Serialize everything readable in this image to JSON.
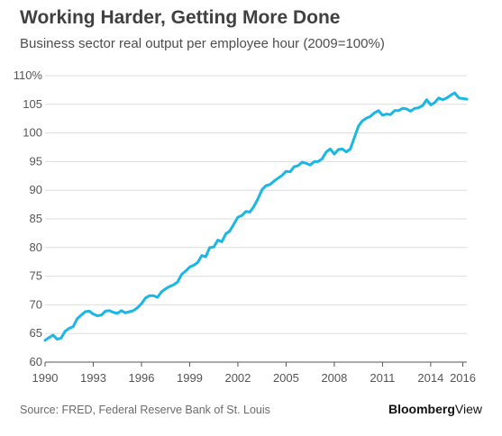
{
  "header": {
    "title": "Working Harder, Getting More Done",
    "subtitle": "Business sector real output per employee hour (2009=100%)"
  },
  "footer": {
    "source": "Source: FRED, Federal Reserve Bank of St. Louis",
    "brand_bold": "Bloomberg",
    "brand_light": "View"
  },
  "colors": {
    "line": "#1ab7e6",
    "grid": "#dddddd",
    "axis": "#555555"
  },
  "chart_data": {
    "type": "line",
    "title": "Working Harder, Getting More Done",
    "subtitle": "Business sector real output per employee hour (2009=100%)",
    "xlabel": "",
    "ylabel": "",
    "xlim": [
      1990,
      2016.25
    ],
    "ylim": [
      60,
      110
    ],
    "grid": true,
    "x_ticks": [
      1990,
      1993,
      1996,
      1999,
      2002,
      2005,
      2008,
      2011,
      2014,
      2016
    ],
    "x_tick_labels": [
      "1990",
      "1993",
      "1996",
      "1999",
      "2002",
      "2005",
      "2008",
      "2011",
      "2014",
      "2016"
    ],
    "y_ticks": [
      60,
      65,
      70,
      75,
      80,
      85,
      90,
      95,
      100,
      105,
      110
    ],
    "y_tick_labels": [
      "60",
      "65",
      "70",
      "75",
      "80",
      "85",
      "90",
      "95",
      "100",
      "105",
      "110%"
    ],
    "series": [
      {
        "x": [
          1990.0,
          1990.25,
          1990.5,
          1990.75,
          1991.0,
          1991.25,
          1991.5,
          1991.75,
          1992.0,
          1992.25,
          1992.5,
          1992.75,
          1993.0,
          1993.25,
          1993.5,
          1993.75,
          1994.0,
          1994.25,
          1994.5,
          1994.75,
          1995.0,
          1995.25,
          1995.5,
          1995.75,
          1996.0,
          1996.25,
          1996.5,
          1996.75,
          1997.0,
          1997.25,
          1997.5,
          1997.75,
          1998.0,
          1998.25,
          1998.5,
          1998.75,
          1999.0,
          1999.25,
          1999.5,
          1999.75,
          2000.0,
          2000.25,
          2000.5,
          2000.75,
          2001.0,
          2001.25,
          2001.5,
          2001.75,
          2002.0,
          2002.25,
          2002.5,
          2002.75,
          2003.0,
          2003.25,
          2003.5,
          2003.75,
          2004.0,
          2004.25,
          2004.5,
          2004.75,
          2005.0,
          2005.25,
          2005.5,
          2005.75,
          2006.0,
          2006.25,
          2006.5,
          2006.75,
          2007.0,
          2007.25,
          2007.5,
          2007.75,
          2008.0,
          2008.25,
          2008.5,
          2008.75,
          2009.0,
          2009.25,
          2009.5,
          2009.75,
          2010.0,
          2010.25,
          2010.5,
          2010.75,
          2011.0,
          2011.25,
          2011.5,
          2011.75,
          2012.0,
          2012.25,
          2012.5,
          2012.75,
          2013.0,
          2013.25,
          2013.5,
          2013.75,
          2014.0,
          2014.25,
          2014.5,
          2014.75,
          2015.0,
          2015.25,
          2015.5,
          2015.75,
          2016.0,
          2016.25
        ],
        "values": [
          63.8,
          64.3,
          64.7,
          64.0,
          64.2,
          65.4,
          65.9,
          66.2,
          67.6,
          68.2,
          68.8,
          68.9,
          68.4,
          68.1,
          68.2,
          68.9,
          69.0,
          68.7,
          68.5,
          69.0,
          68.6,
          68.8,
          69.0,
          69.5,
          70.2,
          71.2,
          71.6,
          71.6,
          71.3,
          72.3,
          72.8,
          73.2,
          73.5,
          74.0,
          75.3,
          75.9,
          76.6,
          76.9,
          77.4,
          78.6,
          78.4,
          80.0,
          80.1,
          81.3,
          81.0,
          82.4,
          82.9,
          84.1,
          85.3,
          85.6,
          86.3,
          86.2,
          87.2,
          88.5,
          90.1,
          90.8,
          91.0,
          91.6,
          92.1,
          92.6,
          93.3,
          93.2,
          94.1,
          94.3,
          94.9,
          94.7,
          94.4,
          95.0,
          95.0,
          95.5,
          96.7,
          97.2,
          96.3,
          97.1,
          97.2,
          96.7,
          97.2,
          99.2,
          101.2,
          102.1,
          102.6,
          102.9,
          103.5,
          103.9,
          103.1,
          103.3,
          103.2,
          103.9,
          103.9,
          104.3,
          104.2,
          103.8,
          104.3,
          104.4,
          104.8,
          105.8,
          104.9,
          105.3,
          106.1,
          105.8,
          106.1,
          106.6,
          107.0,
          106.1,
          106.0,
          105.9
        ]
      }
    ]
  }
}
